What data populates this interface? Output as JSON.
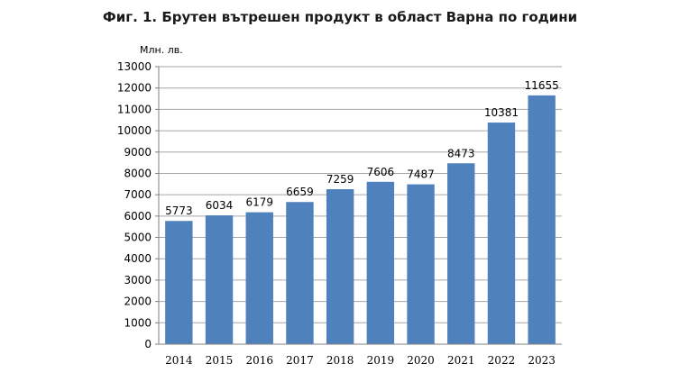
{
  "chart_data": {
    "type": "bar",
    "title": "Фиг. 1. Брутен вътрешен продукт в област Варна по години",
    "ylabel": "Млн. лв.",
    "xlabel": "",
    "categories": [
      "2014",
      "2015",
      "2016",
      "2017",
      "2018",
      "2019",
      "2020",
      "2021",
      "2022",
      "2023"
    ],
    "values": [
      5773,
      6034,
      6179,
      6659,
      7259,
      7606,
      7487,
      8473,
      10381,
      11655
    ],
    "ylim": [
      0,
      13000
    ],
    "ytick_step": 1000,
    "grid": true,
    "legend": "none",
    "bar_color": "#4f81bd",
    "grid_color": "#a6a6a6"
  }
}
